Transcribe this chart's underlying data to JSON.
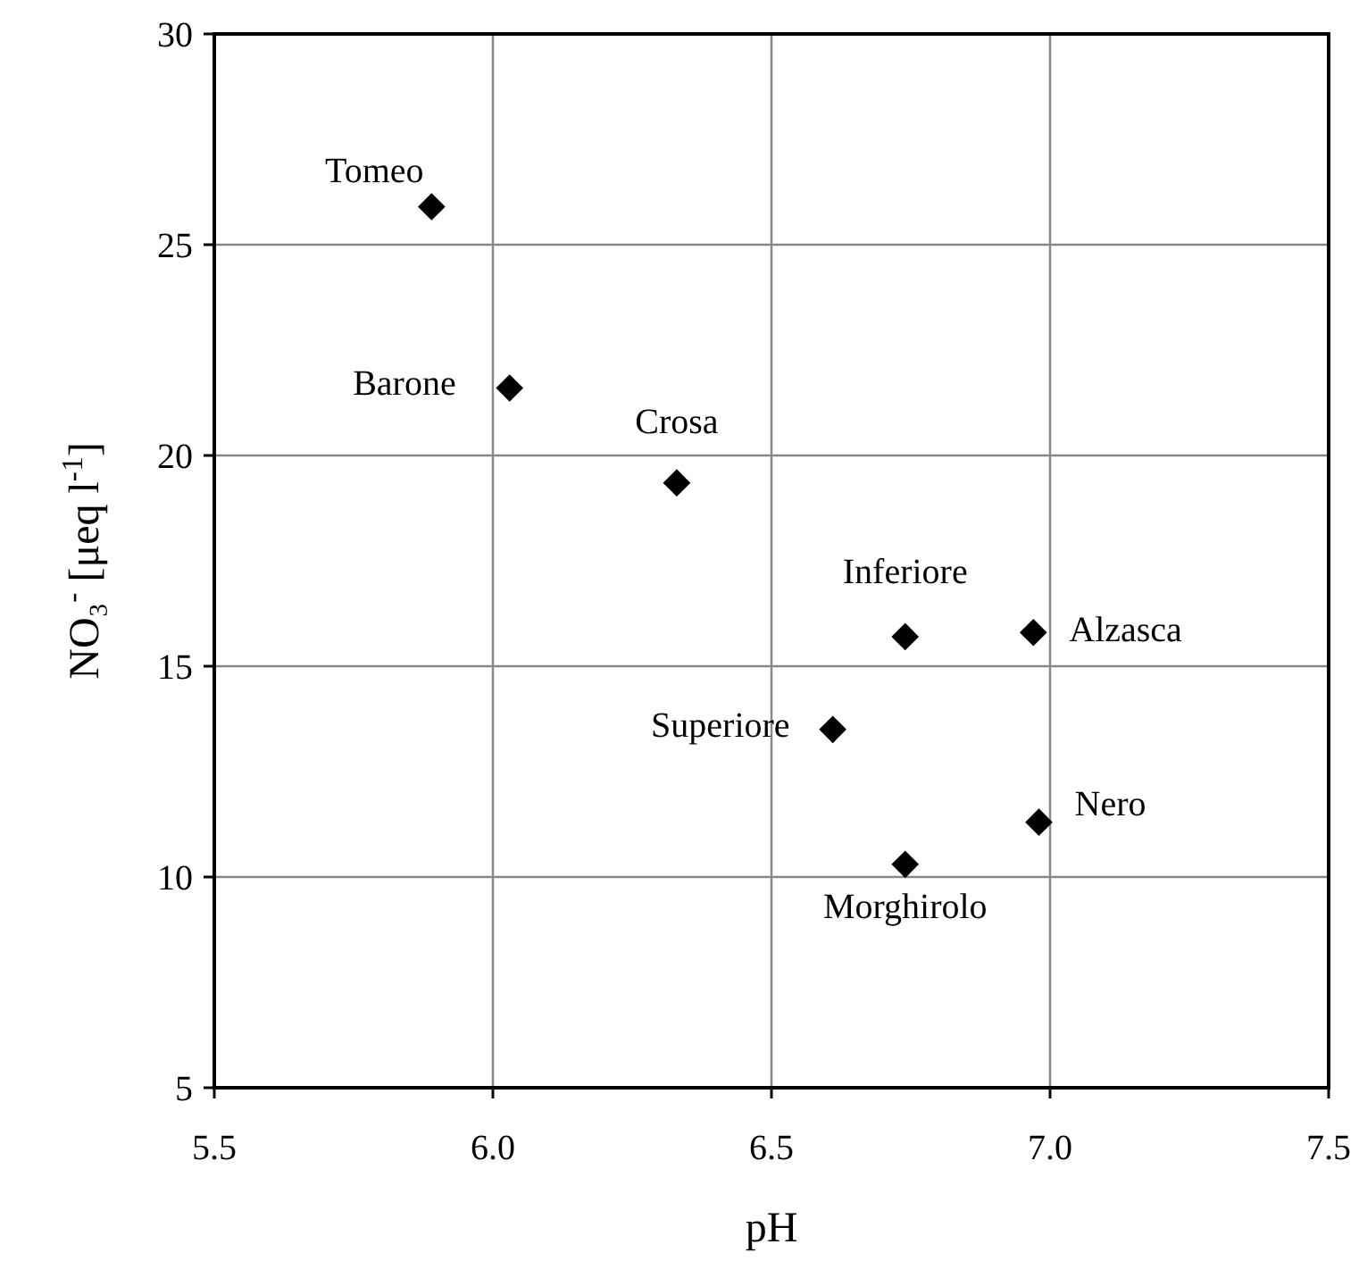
{
  "chart_data": {
    "type": "scatter",
    "xlabel": "pH",
    "ylabel": "NO₃$^{-}$  [μeq l$^{-1}$]",
    "x": [
      5.89,
      6.03,
      6.33,
      6.74,
      6.97,
      6.61,
      6.98,
      6.74
    ],
    "series": [
      {
        "color": "#000000",
        "values": [
          25.9,
          21.6,
          19.35,
          15.7,
          15.8,
          13.5,
          11.3,
          10.3
        ]
      }
    ],
    "annotations": [
      {
        "text": "Tomeo",
        "x": 5.89,
        "y": 25.9
      },
      {
        "text": "Barone",
        "x": 6.03,
        "y": 21.6
      },
      {
        "text": "Crosa",
        "x": 6.33,
        "y": 19.35
      },
      {
        "text": "Inferiore",
        "x": 6.74,
        "y": 15.7
      },
      {
        "text": "Alzasca",
        "x": 6.97,
        "y": 15.8
      },
      {
        "text": "Superiore",
        "x": 6.61,
        "y": 13.5
      },
      {
        "text": "Nero",
        "x": 6.98,
        "y": 11.3
      },
      {
        "text": "Morghirolo",
        "x": 6.74,
        "y": 10.3
      }
    ],
    "xlim": [
      5.5,
      7.5
    ],
    "xticks": [
      {
        "value": 5.5,
        "label": "5.5"
      },
      {
        "value": 6,
        "label": "6.0"
      },
      {
        "value": 6.5,
        "label": "6.5"
      },
      {
        "value": 7,
        "label": "7.0"
      },
      {
        "value": 7.5,
        "label": "7.5"
      }
    ],
    "ylim": [
      5,
      30
    ],
    "yticks": [
      5,
      10,
      15,
      20,
      25,
      30
    ],
    "grid": true,
    "marker": "diamond"
  }
}
